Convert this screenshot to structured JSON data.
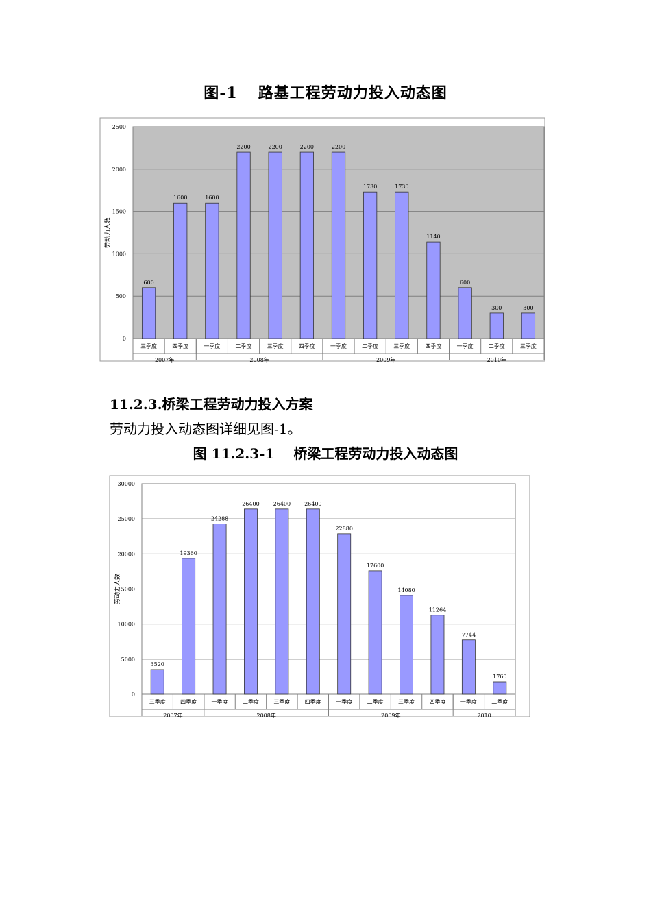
{
  "figure1": {
    "label": "图-1",
    "title": "路基工程劳动力投入动态图"
  },
  "section": {
    "heading": "11.2.3.桥梁工程劳动力投入方案",
    "paragraph": "劳动力投入动态图详细见图-1。"
  },
  "figure2": {
    "label": "图 11.2.3-1",
    "title": "桥梁工程劳动力投入动态图"
  },
  "chart_data": [
    {
      "type": "bar",
      "ylabel": "劳动力人数",
      "ylim": [
        0,
        2500
      ],
      "yticks": [
        0,
        500,
        1000,
        1500,
        2000,
        2500
      ],
      "plot_background": "#c0c0c0",
      "bar_color": "#9999ff",
      "grid": true,
      "categories": [
        "三季度",
        "四季度",
        "一季度",
        "二季度",
        "三季度",
        "四季度",
        "一季度",
        "二季度",
        "三季度",
        "四季度",
        "一季度",
        "二季度",
        "三季度"
      ],
      "groups": [
        {
          "label": "2007年",
          "count": 2
        },
        {
          "label": "2008年",
          "count": 4
        },
        {
          "label": "2009年",
          "count": 4
        },
        {
          "label": "2010年",
          "count": 3
        }
      ],
      "values": [
        600,
        1600,
        1600,
        2200,
        2200,
        2200,
        2200,
        1730,
        1730,
        1140,
        600,
        300,
        300
      ]
    },
    {
      "type": "bar",
      "ylabel": "劳动力人数",
      "ylim": [
        0,
        30000
      ],
      "yticks": [
        0,
        5000,
        10000,
        15000,
        20000,
        25000,
        30000
      ],
      "plot_background": "#ffffff",
      "bar_color": "#9999ff",
      "grid": true,
      "categories": [
        "三季度",
        "四季度",
        "一季度",
        "二季度",
        "三季度",
        "四季度",
        "一季度",
        "二季度",
        "三季度",
        "四季度",
        "一季度",
        "二季度"
      ],
      "groups": [
        {
          "label": "2007年",
          "count": 2
        },
        {
          "label": "2008年",
          "count": 4
        },
        {
          "label": "2009年",
          "count": 4
        },
        {
          "label": "2010",
          "count": 2
        }
      ],
      "values": [
        3520,
        19360,
        24288,
        26400,
        26400,
        26400,
        22880,
        17600,
        14080,
        11264,
        7744,
        1760
      ]
    }
  ]
}
